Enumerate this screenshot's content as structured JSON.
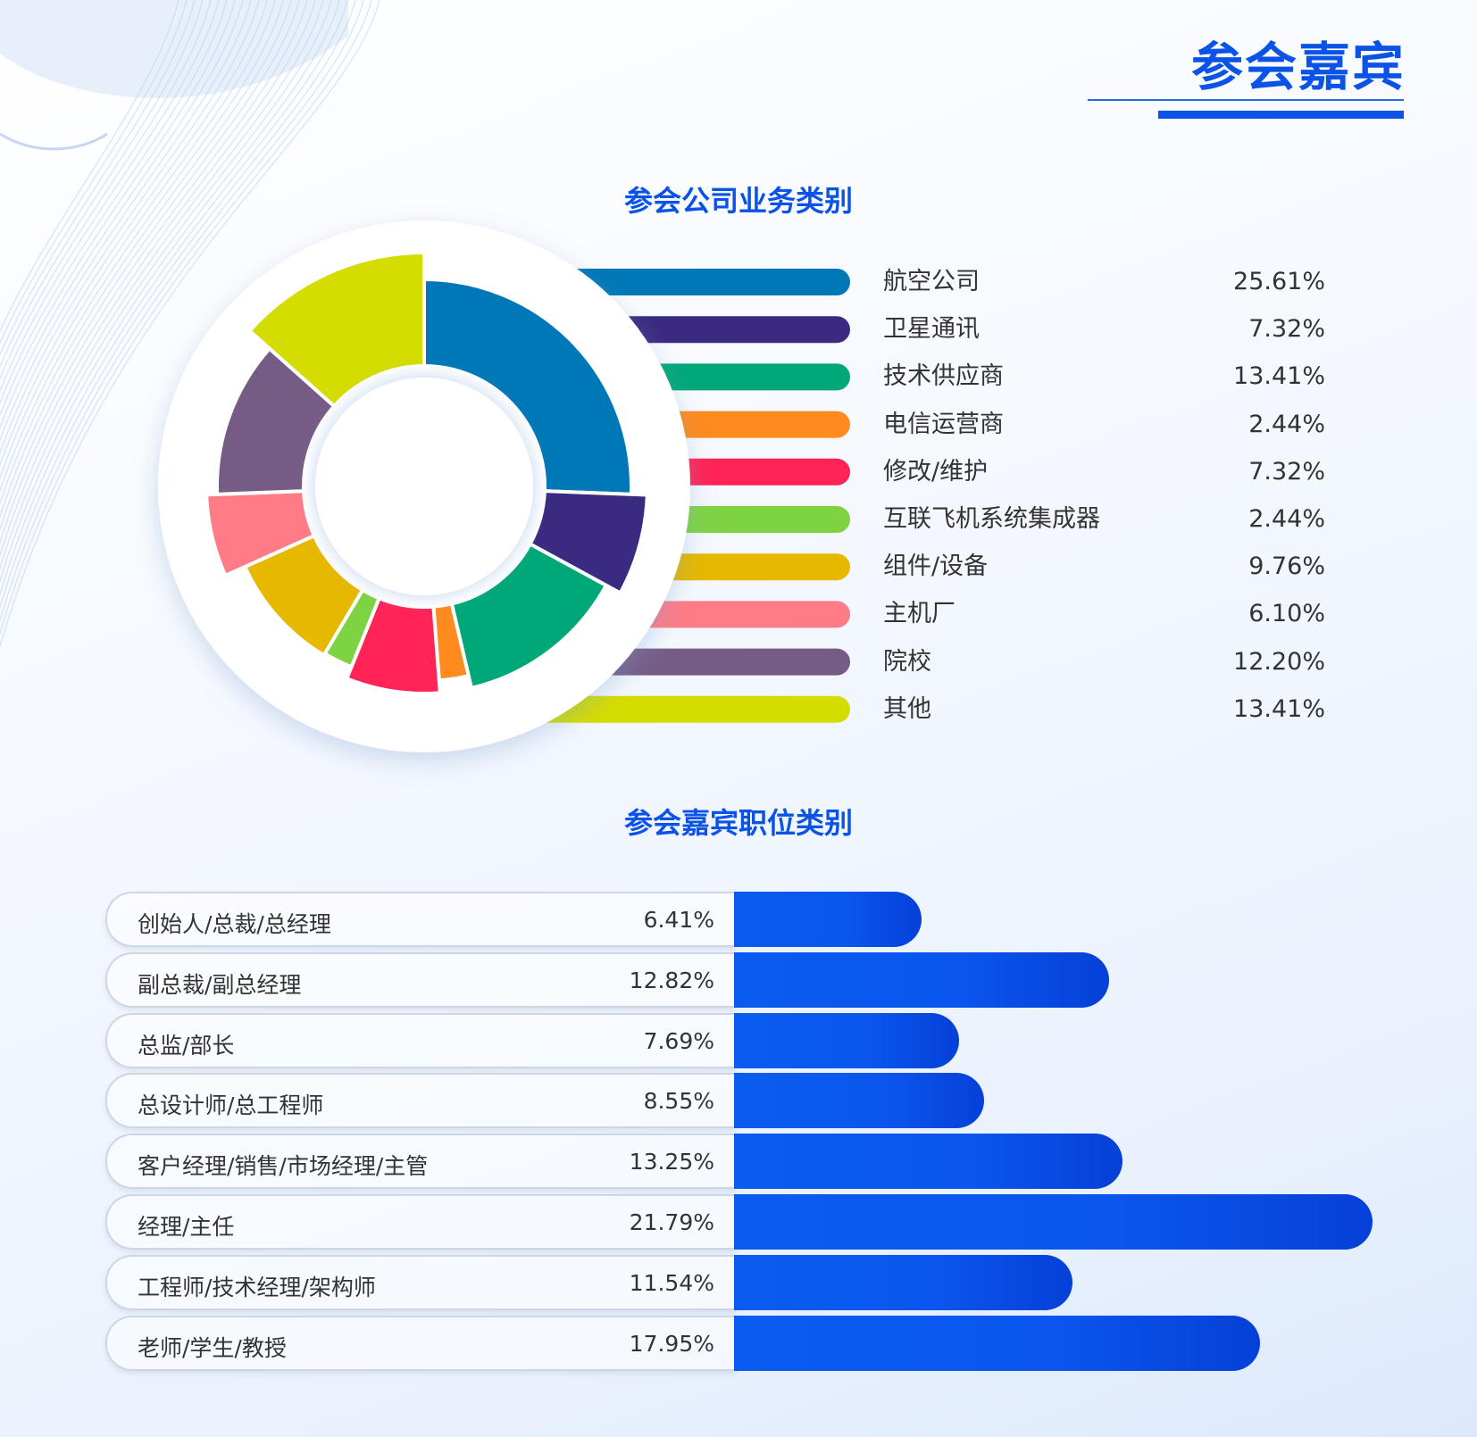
{
  "page": {
    "title": "参会嘉宾"
  },
  "colors": {
    "accent": "#0b53e6",
    "position_bar": "#0a56ee"
  },
  "chart_data": [
    {
      "type": "pie",
      "title": "参会公司业务类别",
      "unit": "%",
      "categories": [
        "航空公司",
        "卫星通讯",
        "技术供应商",
        "电信运营商",
        "修改/维护",
        "互联飞机系统集成器",
        "组件/设备",
        "主机厂",
        "院校",
        "其他"
      ],
      "values": [
        25.61,
        7.32,
        13.41,
        2.44,
        7.32,
        2.44,
        9.76,
        6.1,
        12.2,
        13.41
      ],
      "labels": [
        "25.61%",
        "7.32%",
        "13.41%",
        "2.44%",
        "7.32%",
        "2.44%",
        "9.76%",
        "6.10%",
        "12.20%",
        "13.41%"
      ],
      "colors": [
        "#0077b6",
        "#3a2a80",
        "#00a878",
        "#ff8a1e",
        "#ff2356",
        "#7ed343",
        "#e6b800",
        "#ff7b85",
        "#765c85",
        "#d4dc00"
      ],
      "legend": "right"
    },
    {
      "type": "bar",
      "orientation": "horizontal",
      "title": "参会嘉宾职位类别",
      "unit": "%",
      "categories": [
        "创始人/总裁/总经理",
        "副总裁/副总经理",
        "总监/部长",
        "总设计师/总工程师",
        "客户经理/销售/市场经理/主管",
        "经理/主任",
        "工程师/技术经理/架构师",
        "老师/学生/教授"
      ],
      "values": [
        6.41,
        12.82,
        7.69,
        8.55,
        13.25,
        21.79,
        11.54,
        17.95
      ],
      "labels": [
        "6.41%",
        "12.82%",
        "7.69%",
        "8.55%",
        "13.25%",
        "21.79%",
        "11.54%",
        "17.95%"
      ]
    }
  ]
}
